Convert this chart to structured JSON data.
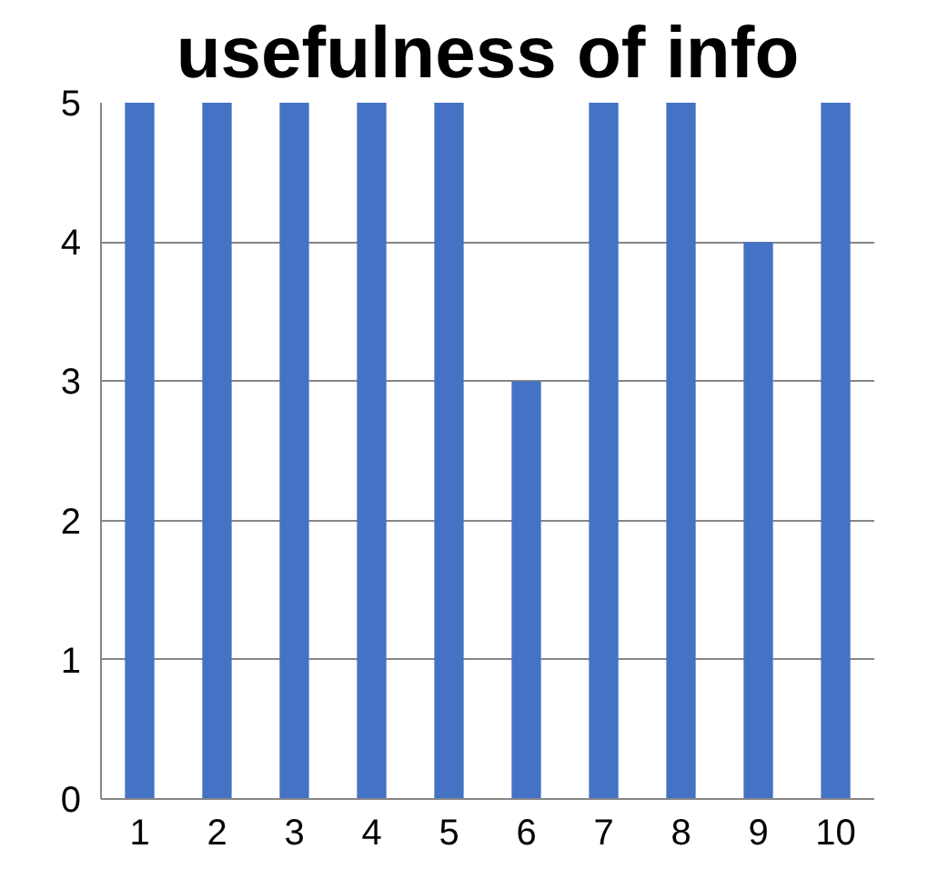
{
  "chart_data": {
    "type": "bar",
    "title": "usefulness of info",
    "categories": [
      "1",
      "2",
      "3",
      "4",
      "5",
      "6",
      "7",
      "8",
      "9",
      "10"
    ],
    "values": [
      5,
      5,
      5,
      5,
      5,
      3,
      5,
      5,
      4,
      5
    ],
    "color": "#4472c4",
    "ylim": [
      0,
      5
    ],
    "yticks": [
      0,
      1,
      2,
      3,
      4,
      5
    ],
    "grid": "y"
  }
}
